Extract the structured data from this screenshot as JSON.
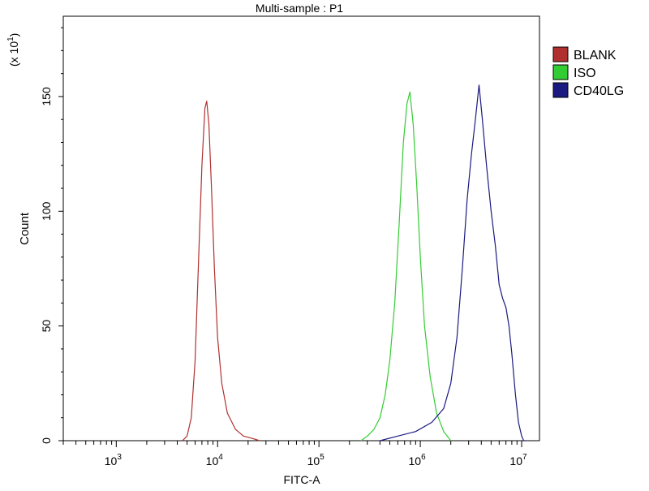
{
  "chart_data": {
    "type": "line",
    "title": "Multi-sample : P1",
    "xlabel": "FITC-A",
    "ylabel": "Count",
    "y_multiplier_label": "(x 10",
    "y_multiplier_exp": "1",
    "x_scale": "log",
    "xlim": [
      300,
      15000000
    ],
    "ylim": [
      0,
      185
    ],
    "x_ticks": [
      {
        "value": 1000,
        "base": "10",
        "exp": "3"
      },
      {
        "value": 10000,
        "base": "10",
        "exp": "4"
      },
      {
        "value": 100000,
        "base": "10",
        "exp": "5"
      },
      {
        "value": 1000000,
        "base": "10",
        "exp": "6"
      },
      {
        "value": 10000000,
        "base": "10",
        "exp": "7"
      }
    ],
    "y_ticks": [
      {
        "value": 0,
        "label": "0"
      },
      {
        "value": 50,
        "label": "50"
      },
      {
        "value": 100,
        "label": "100"
      },
      {
        "value": 150,
        "label": "150"
      }
    ],
    "legend_position": "top-right",
    "series": [
      {
        "name": "BLANK",
        "color": "#b03030",
        "x": [
          4500,
          5000,
          5500,
          6000,
          6500,
          7000,
          7500,
          7800,
          8200,
          8700,
          9300,
          10000,
          11000,
          12500,
          15000,
          18000,
          22000,
          26000
        ],
        "y": [
          0,
          2,
          10,
          35,
          80,
          120,
          145,
          148,
          138,
          110,
          75,
          45,
          25,
          12,
          5,
          2,
          1,
          0
        ]
      },
      {
        "name": "ISO",
        "color": "#33cc33",
        "x": [
          260000,
          300000,
          350000,
          400000,
          450000,
          500000,
          560000,
          620000,
          680000,
          740000,
          790000,
          850000,
          920000,
          1000000,
          1100000,
          1250000,
          1450000,
          1700000,
          2000000
        ],
        "y": [
          0,
          2,
          5,
          10,
          20,
          35,
          60,
          95,
          130,
          147,
          152,
          138,
          112,
          80,
          50,
          28,
          12,
          4,
          0
        ]
      },
      {
        "name": "CD40LG",
        "color": "#1a1a80",
        "x": [
          400000,
          600000,
          900000,
          1300000,
          1700000,
          2000000,
          2300000,
          2600000,
          2900000,
          3200000,
          3500000,
          3800000,
          4100000,
          4500000,
          5000000,
          5500000,
          6000000,
          6500000,
          7000000,
          7500000,
          8000000,
          8700000,
          9300000,
          10000000,
          10500000,
          11000000
        ],
        "y": [
          0,
          2,
          4,
          8,
          14,
          25,
          45,
          75,
          105,
          125,
          140,
          155,
          140,
          120,
          100,
          85,
          68,
          62,
          58,
          50,
          38,
          20,
          8,
          2,
          0,
          0
        ]
      }
    ]
  }
}
